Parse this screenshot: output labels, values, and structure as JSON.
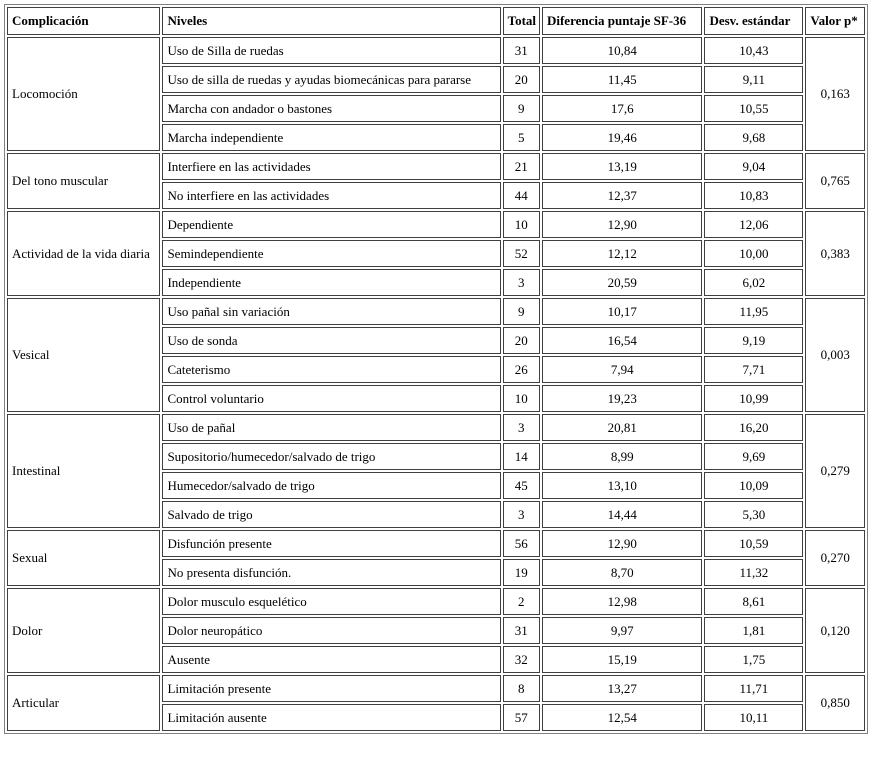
{
  "table": {
    "header": [
      "Complicación",
      "Niveles",
      "Total",
      "Diferencia puntaje SF-36",
      "Desv. estándar",
      "Valor p*"
    ],
    "groups": [
      {
        "name": "Locomoción",
        "p": "0,163",
        "rows": [
          [
            "Uso de Silla de ruedas",
            31,
            "10,84",
            "10,43"
          ],
          [
            "Uso de silla de ruedas y ayudas biomecánicas para pararse",
            20,
            "11,45",
            "9,11"
          ],
          [
            "Marcha con andador o bastones",
            9,
            "17,6",
            "10,55"
          ],
          [
            "Marcha independiente",
            5,
            "19,46",
            "9,68"
          ]
        ]
      },
      {
        "name": "Del tono muscular",
        "p": "0,765",
        "rows": [
          [
            "Interfiere en las actividades",
            21,
            "13,19",
            "9,04"
          ],
          [
            "No interfiere en las actividades",
            44,
            "12,37",
            "10,83"
          ]
        ]
      },
      {
        "name": "Actividad de la vida diaria",
        "p": "0,383",
        "rows": [
          [
            "Dependiente",
            10,
            "12,90",
            "12,06"
          ],
          [
            "Semindependiente",
            52,
            "12,12",
            "10,00"
          ],
          [
            "Independiente",
            3,
            "20,59",
            "6,02"
          ]
        ]
      },
      {
        "name": "Vesical",
        "p": "0,003",
        "rows": [
          [
            "Uso pañal sin variación",
            9,
            "10,17",
            "11,95"
          ],
          [
            "Uso de sonda",
            20,
            "16,54",
            "9,19"
          ],
          [
            "Cateterismo",
            26,
            "7,94",
            "7,71"
          ],
          [
            "Control voluntario",
            10,
            "19,23",
            "10,99"
          ]
        ]
      },
      {
        "name": "Intestinal",
        "p": "0,279",
        "rows": [
          [
            "Uso de pañal",
            3,
            "20,81",
            "16,20"
          ],
          [
            "Supositorio/humecedor/salvado de trigo",
            14,
            "8,99",
            "9,69"
          ],
          [
            "Humecedor/salvado de trigo",
            45,
            "13,10",
            "10,09"
          ],
          [
            "Salvado de trigo",
            3,
            "14,44",
            "5,30"
          ]
        ]
      },
      {
        "name": "Sexual",
        "p": "0,270",
        "rows": [
          [
            "Disfunción presente",
            56,
            "12,90",
            "10,59"
          ],
          [
            "No presenta disfunción.",
            19,
            "8,70",
            "11,32"
          ]
        ]
      },
      {
        "name": "Dolor",
        "p": "0,120",
        "rows": [
          [
            "Dolor musculo esquelético",
            2,
            "12,98",
            "8,61"
          ],
          [
            "Dolor neuropático",
            31,
            "9,97",
            "1,81"
          ],
          [
            "Ausente",
            32,
            "15,19",
            "1,75"
          ]
        ]
      },
      {
        "name": "Articular",
        "p": "0,850",
        "rows": [
          [
            "Limitación presente",
            8,
            "13,27",
            "11,71"
          ],
          [
            "Limitación ausente",
            57,
            "12,54",
            "10,11"
          ]
        ]
      }
    ]
  }
}
